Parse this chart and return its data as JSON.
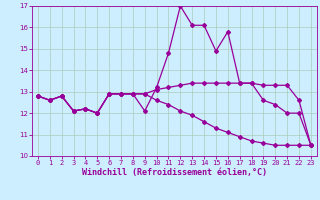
{
  "xlabel": "Windchill (Refroidissement éolien,°C)",
  "background_color": "#cceeff",
  "line_color": "#990099",
  "grid_color": "#aaccbb",
  "xlim": [
    -0.5,
    23.5
  ],
  "ylim": [
    10,
    17
  ],
  "yticks": [
    10,
    11,
    12,
    13,
    14,
    15,
    16,
    17
  ],
  "xticks": [
    0,
    1,
    2,
    3,
    4,
    5,
    6,
    7,
    8,
    9,
    10,
    11,
    12,
    13,
    14,
    15,
    16,
    17,
    18,
    19,
    20,
    21,
    22,
    23
  ],
  "curve1_x": [
    0,
    1,
    2,
    3,
    4,
    5,
    6,
    7,
    8,
    9,
    10,
    11,
    12,
    13,
    14,
    15,
    16,
    17,
    18,
    19,
    20,
    21,
    22,
    23
  ],
  "curve1_y": [
    12.8,
    12.6,
    12.8,
    12.1,
    12.2,
    12.0,
    12.9,
    12.9,
    12.9,
    12.1,
    13.2,
    14.8,
    17.0,
    16.1,
    16.1,
    14.9,
    15.8,
    13.4,
    13.4,
    12.6,
    12.4,
    12.0,
    12.0,
    10.5
  ],
  "curve2_x": [
    0,
    1,
    2,
    3,
    4,
    5,
    6,
    7,
    8,
    9,
    10,
    11,
    12,
    13,
    14,
    15,
    16,
    17,
    18,
    19,
    20,
    21,
    22,
    23
  ],
  "curve2_y": [
    12.8,
    12.6,
    12.8,
    12.1,
    12.2,
    12.0,
    12.9,
    12.9,
    12.9,
    12.9,
    13.1,
    13.2,
    13.3,
    13.4,
    13.4,
    13.4,
    13.4,
    13.4,
    13.4,
    13.3,
    13.3,
    13.3,
    12.6,
    10.5
  ],
  "curve3_x": [
    0,
    1,
    2,
    3,
    4,
    5,
    6,
    7,
    8,
    9,
    10,
    11,
    12,
    13,
    14,
    15,
    16,
    17,
    18,
    19,
    20,
    21,
    22,
    23
  ],
  "curve3_y": [
    12.8,
    12.6,
    12.8,
    12.1,
    12.2,
    12.0,
    12.9,
    12.9,
    12.9,
    12.9,
    12.6,
    12.4,
    12.1,
    11.9,
    11.6,
    11.3,
    11.1,
    10.9,
    10.7,
    10.6,
    10.5,
    10.5,
    10.5,
    10.5
  ],
  "marker": "D",
  "markersize": 2.0,
  "linewidth": 0.9,
  "tick_fontsize": 5.0,
  "xlabel_fontsize": 6.0
}
